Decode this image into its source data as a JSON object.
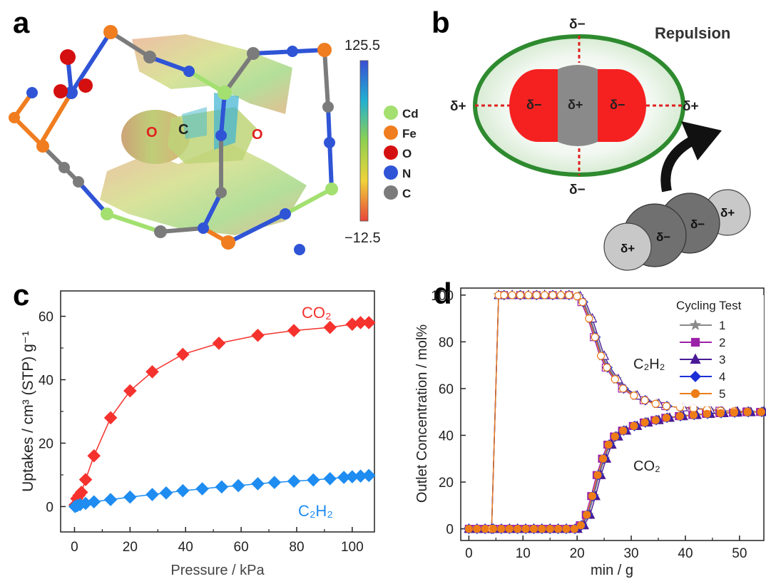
{
  "panel_labels": {
    "a": "a",
    "b": "b",
    "c": "c",
    "d": "d"
  },
  "panel_a": {
    "atom_labels": {
      "o_left": "O",
      "c_center": "C",
      "o_right": "O"
    },
    "colorbar": {
      "max": "125.5",
      "min": "−12.5"
    },
    "legend": [
      {
        "label": "Cd",
        "color": "#a3e070"
      },
      {
        "label": "Fe",
        "color": "#f07d1f"
      },
      {
        "label": "O",
        "color": "#d40f0f"
      },
      {
        "label": "N",
        "color": "#2f54d6"
      },
      {
        "label": "C",
        "color": "#7b7b7b"
      }
    ]
  },
  "panel_b": {
    "title": "Repulsion",
    "charges": {
      "top": "δ−",
      "bottom": "δ−",
      "left": "δ+",
      "right": "δ+",
      "red_left": "δ−",
      "grey_center": "δ+",
      "red_right": "δ−"
    },
    "molecule_charges": [
      "δ+",
      "δ−",
      "δ−",
      "δ+"
    ]
  },
  "chart_data": [
    {
      "type": "scatter",
      "panel": "c",
      "xlabel": "Pressure / kPa",
      "ylabel": "Uptakes / cm³ (STP) g⁻¹",
      "xlim": [
        -5,
        108
      ],
      "ylim": [
        -8,
        68
      ],
      "xticks": [
        0,
        20,
        40,
        60,
        80,
        100
      ],
      "yticks": [
        0,
        20,
        40,
        60
      ],
      "series": [
        {
          "name": "CO₂",
          "color": "#f5322d",
          "x": [
            0.2,
            0.8,
            1.6,
            2.5,
            4,
            7,
            13,
            20,
            28,
            39,
            52,
            66,
            79,
            92,
            100,
            103,
            106
          ],
          "y": [
            0.5,
            2.5,
            3.5,
            4.5,
            8.5,
            16,
            28,
            36.5,
            42.5,
            48,
            51.5,
            54,
            55.5,
            56.5,
            57.5,
            58,
            58
          ]
        },
        {
          "name": "C₂H₂",
          "color": "#1e8cf0",
          "x": [
            0.2,
            1,
            2,
            4,
            7,
            13,
            20,
            28,
            33,
            39,
            46,
            53,
            59,
            66,
            72,
            79,
            86,
            92,
            97,
            100,
            103,
            106
          ],
          "y": [
            0,
            0.3,
            0.6,
            1,
            1.5,
            2.2,
            3,
            3.8,
            4.3,
            5,
            5.6,
            6.2,
            6.6,
            7.2,
            7.6,
            8,
            8.4,
            8.8,
            9.2,
            9.4,
            9.6,
            9.8
          ]
        }
      ]
    },
    {
      "type": "line",
      "panel": "d",
      "xlabel": "min / g",
      "ylabel": "Outlet Concentration / mol%",
      "xlim": [
        -1.5,
        54.5
      ],
      "ylim": [
        -5,
        103
      ],
      "xticks": [
        0,
        10,
        20,
        30,
        40,
        50
      ],
      "yticks": [
        0,
        20,
        40,
        60,
        80,
        100
      ],
      "legend_title": "Cycling Test",
      "legend_position": "top-right",
      "annotations": [
        "C₂H₂",
        "CO₂"
      ],
      "c2h2_x": [
        0,
        1.5,
        3,
        4.2,
        5.5,
        6.5,
        8,
        9.5,
        11,
        12.5,
        14,
        15.5,
        17,
        18.5,
        20,
        21,
        22.2,
        23.3,
        24.4,
        25.5,
        27,
        28.5,
        30.5,
        32.5,
        34.5,
        36.5,
        39,
        41.5,
        44,
        46.5,
        49,
        51.5,
        54
      ],
      "c2h2_y": [
        0,
        0,
        0,
        0,
        100,
        100,
        100,
        100,
        100,
        100,
        100,
        100,
        100,
        100,
        99.5,
        97,
        90,
        82,
        74,
        69,
        64,
        60,
        57,
        55,
        53.5,
        52.5,
        52,
        51.5,
        51,
        50.5,
        50.3,
        50.2,
        50
      ],
      "co2_x": [
        0,
        1.5,
        3,
        4.5,
        6,
        7.5,
        9,
        10.5,
        12,
        13.5,
        15,
        16.5,
        18,
        19.5,
        20.7,
        21.8,
        22.8,
        23.8,
        24.8,
        25.8,
        27,
        28.5,
        30.5,
        32.5,
        34.5,
        36.5,
        39,
        41.5,
        44,
        46.5,
        49,
        51.5,
        54
      ],
      "co2_y": [
        0,
        0,
        0,
        0,
        0,
        0,
        0,
        0,
        0,
        0,
        0,
        0,
        0,
        0,
        1.5,
        6,
        14,
        23,
        30,
        36,
        39.5,
        42,
        44,
        45.5,
        46.5,
        47.5,
        48.2,
        48.7,
        49.2,
        49.5,
        49.7,
        49.9,
        50
      ],
      "series": [
        {
          "name": "1",
          "color": "#8a8a8a",
          "marker": "star"
        },
        {
          "name": "2",
          "color": "#9b22a8",
          "marker": "square"
        },
        {
          "name": "3",
          "color": "#4a1a96",
          "marker": "triangle"
        },
        {
          "name": "4",
          "color": "#1c2fd6",
          "marker": "diamond"
        },
        {
          "name": "5",
          "color": "#ee7d17",
          "marker": "circle"
        }
      ]
    }
  ]
}
